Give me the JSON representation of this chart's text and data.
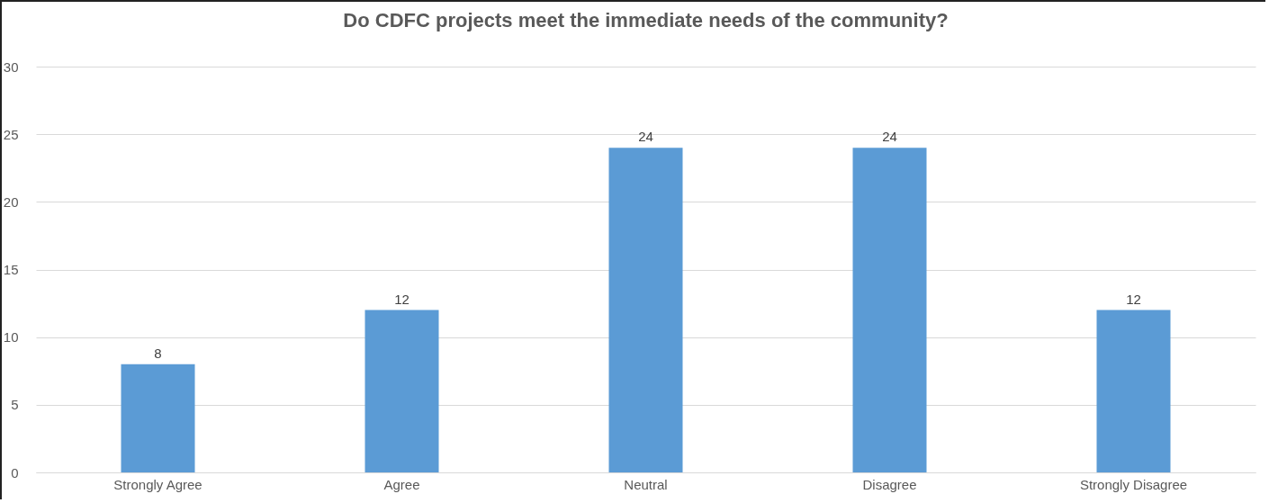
{
  "chart_data": {
    "type": "bar",
    "title": "Do CDFC projects meet the immediate needs of the community?",
    "categories": [
      "Strongly Agree",
      "Agree",
      "Neutral",
      "Disagree",
      "Strongly Disagree"
    ],
    "values": [
      8,
      12,
      24,
      24,
      12
    ],
    "color": "#5b9bd5",
    "ylim": [
      0,
      30
    ],
    "yticks": [
      0,
      5,
      10,
      15,
      20,
      25,
      30
    ],
    "grid": "y",
    "data_labels": true
  }
}
